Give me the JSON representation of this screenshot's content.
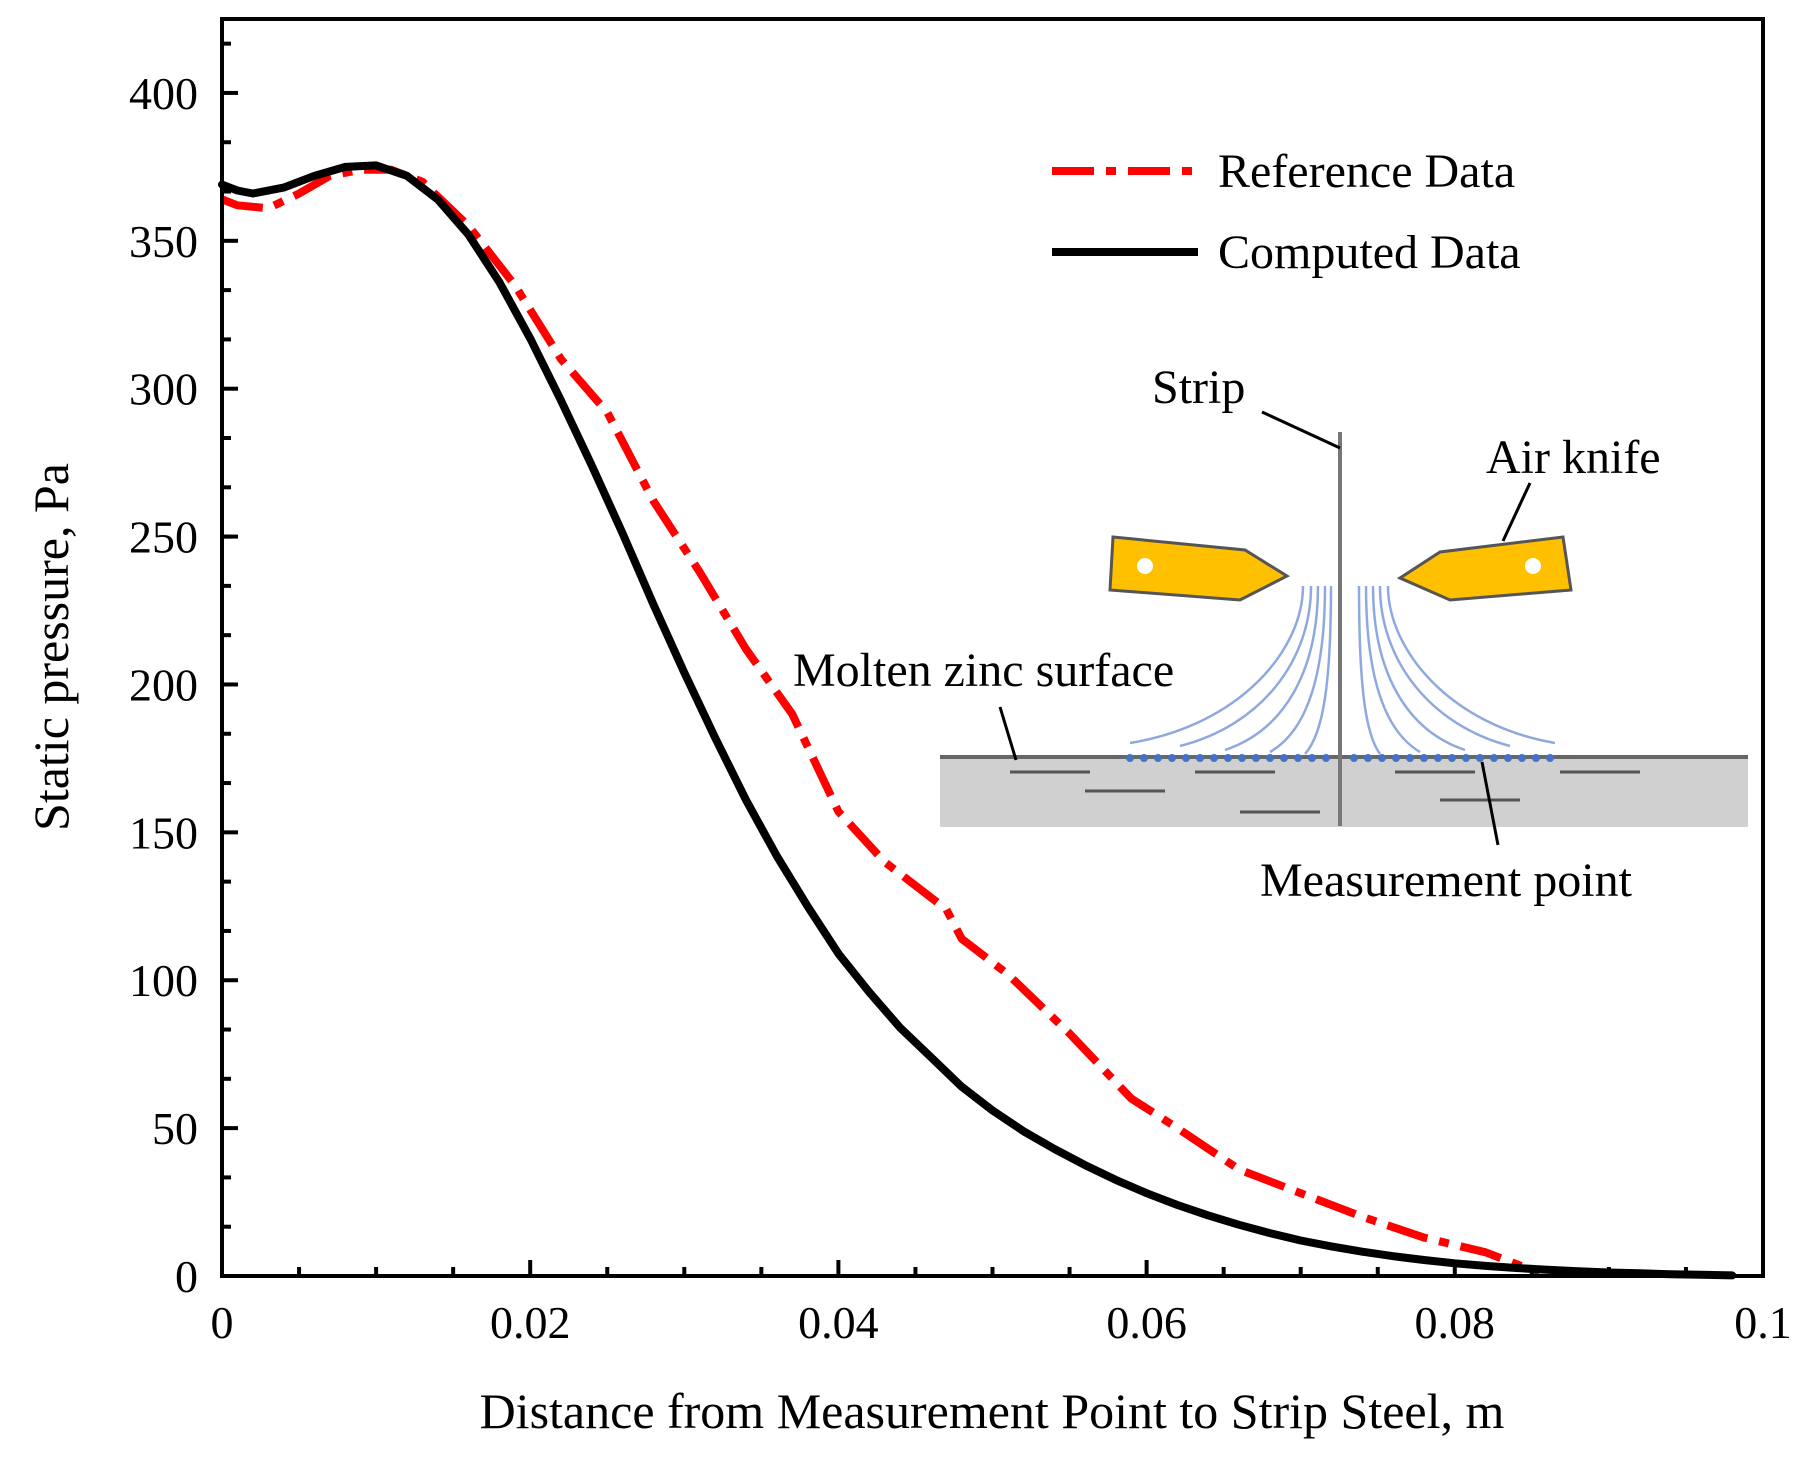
{
  "chart_data": {
    "type": "line",
    "title": "",
    "xlabel": "Distance from Measurement Point to Strip Steel, m",
    "ylabel": "Static pressure, Pa",
    "xlim": [
      0,
      0.1
    ],
    "ylim": [
      0,
      425
    ],
    "xticks": [
      0,
      0.02,
      0.04,
      0.06,
      0.08,
      0.1
    ],
    "xtick_labels": [
      "0",
      "0.02",
      "0.04",
      "0.06",
      "0.08",
      "0.1"
    ],
    "yticks": [
      0,
      50,
      100,
      150,
      200,
      250,
      300,
      350,
      400
    ],
    "ytick_labels": [
      "0",
      "50",
      "100",
      "150",
      "200",
      "250",
      "300",
      "350",
      "400"
    ],
    "grid": false,
    "legend_position": "top-right",
    "series": [
      {
        "name": "Reference Data",
        "color": "#ff0000",
        "style": "dash-dot",
        "x": [
          0,
          0.001,
          0.003,
          0.005,
          0.007,
          0.009,
          0.011,
          0.013,
          0.016,
          0.019,
          0.022,
          0.025,
          0.026,
          0.028,
          0.031,
          0.034,
          0.037,
          0.04,
          0.043,
          0.047,
          0.048,
          0.051,
          0.055,
          0.059,
          0.062,
          0.066,
          0.07,
          0.074,
          0.078,
          0.082,
          0.0855
        ],
        "values": [
          364,
          362,
          361,
          366,
          372,
          374,
          374,
          370,
          355,
          335,
          310,
          292,
          282,
          262,
          238,
          212,
          190,
          157,
          140,
          124,
          114,
          102,
          82,
          60,
          50,
          36,
          28,
          20,
          13,
          8,
          1
        ]
      },
      {
        "name": "Computed Data",
        "color": "#000000",
        "style": "solid",
        "x": [
          0,
          0.001,
          0.002,
          0.004,
          0.006,
          0.008,
          0.01,
          0.012,
          0.014,
          0.016,
          0.018,
          0.02,
          0.022,
          0.024,
          0.026,
          0.028,
          0.03,
          0.032,
          0.034,
          0.036,
          0.038,
          0.04,
          0.042,
          0.044,
          0.046,
          0.048,
          0.05,
          0.052,
          0.054,
          0.056,
          0.058,
          0.06,
          0.062,
          0.064,
          0.066,
          0.068,
          0.07,
          0.072,
          0.074,
          0.076,
          0.078,
          0.08,
          0.082,
          0.084,
          0.086,
          0.088,
          0.09,
          0.092,
          0.094,
          0.096,
          0.098
        ],
        "values": [
          369,
          367,
          366,
          368,
          372,
          375,
          375.5,
          372,
          364,
          352,
          336,
          317,
          296,
          274,
          251,
          227,
          204,
          182,
          161,
          142,
          125,
          109,
          96,
          84,
          74,
          64,
          56,
          49,
          43,
          37.5,
          32.5,
          28,
          24,
          20.5,
          17.3,
          14.5,
          12,
          10,
          8.2,
          6.7,
          5.4,
          4.3,
          3.4,
          2.7,
          2.1,
          1.6,
          1.2,
          0.9,
          0.6,
          0.4,
          0.2
        ]
      }
    ],
    "inset_labels": {
      "strip": "Strip",
      "air_knife": "Air knife",
      "molten_zinc": "Molten zinc surface",
      "measurement_point": "Measurement point"
    }
  },
  "colors": {
    "reference": "#ff0000",
    "computed": "#000000",
    "air_knife_fill": "#ffc000",
    "bath_fill": "#d0d0d0",
    "flow_lines": "#8fa9e0",
    "measurement_dots": "#4472c4"
  }
}
